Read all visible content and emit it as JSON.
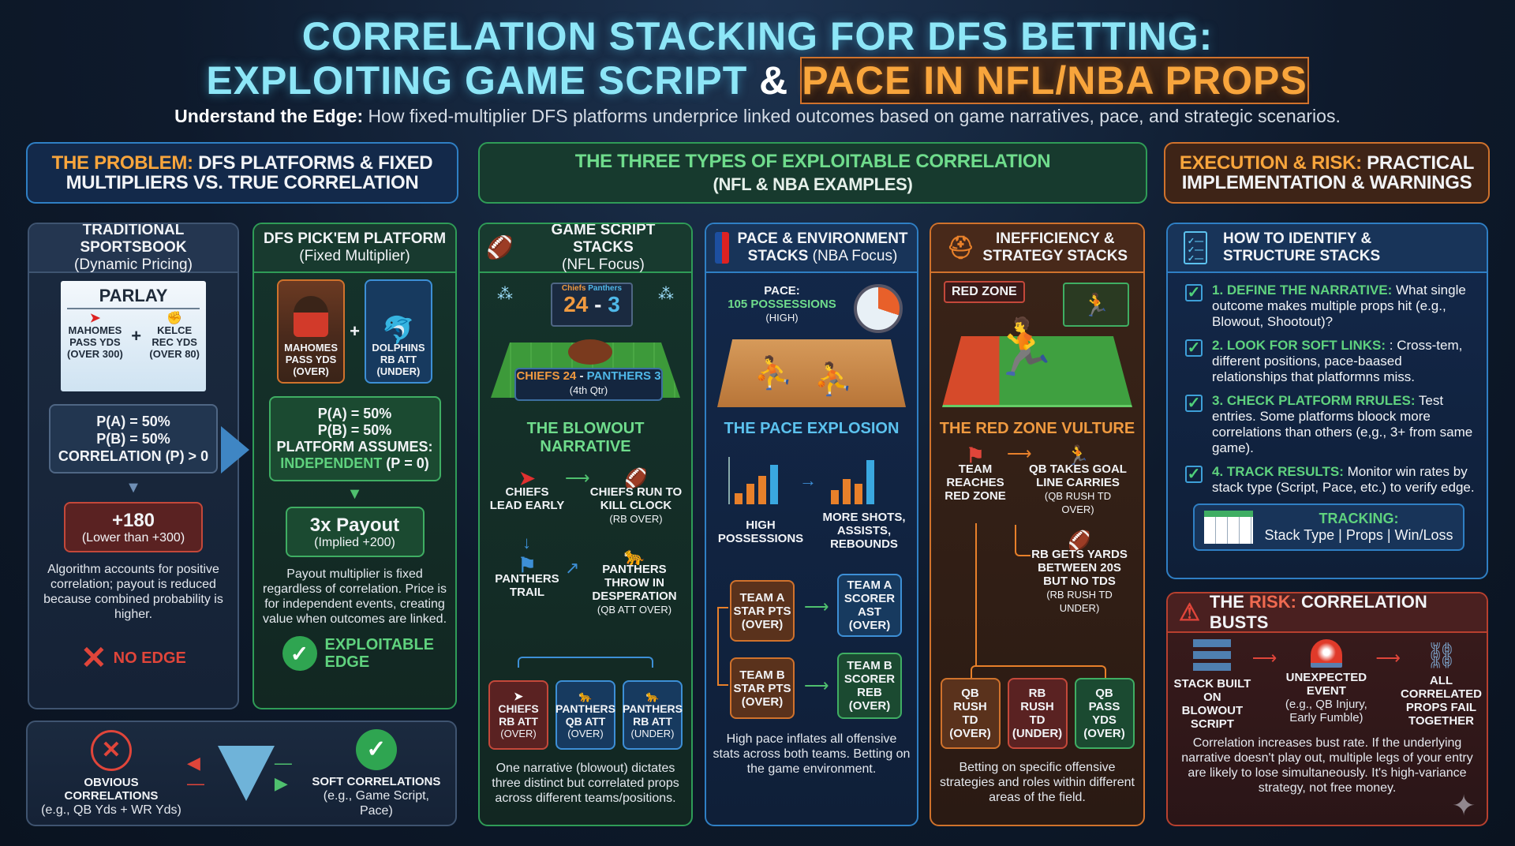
{
  "title": {
    "line1": "Correlation Stacking for DFS Betting:",
    "line2_a": "Exploiting Game Script",
    "line2_amp": "&",
    "line2_b": "Pace in NFL/NBA Props"
  },
  "subtitle": {
    "lead": "Understand the Edge:",
    "text": " How fixed-multiplier DFS platforms underprice linked outcomes based on game narratives, pace, and strategic scenarios."
  },
  "sections": {
    "problem": {
      "accent": "The Problem:",
      "rest": " DFS Platforms & Fixed Multipliers vs. True Correlation"
    },
    "types": {
      "line1": "The Three Types of Exploitable Correlation",
      "line2": "(NFL & NBA Examples)"
    },
    "execution": {
      "accent": "Execution & Risk:",
      "rest": " Practical Implementation & Warnings"
    }
  },
  "sportsbook": {
    "title": "Traditional Sportsbook",
    "subtitle": "(Dynamic Pricing)",
    "ticket_title": "Parlay",
    "leg_a": [
      "Mahomes",
      "Pass Yds",
      "(Over 300)"
    ],
    "leg_b": [
      "Kelce",
      "Rec Yds",
      "(Over 80)"
    ],
    "plus": "+",
    "prob": [
      "P(A) = 50%",
      "P(B) = 50%",
      "Correlation (ρ) > 0"
    ],
    "odds": "+180",
    "odds_note": "(Lower than +300)",
    "desc": "Algorithm accounts for positive correlation; payout is reduced because combined probability is higher.",
    "verdict": "No Edge"
  },
  "dfs": {
    "title": "DFS Pick'em Platform",
    "subtitle": "(Fixed Multiplier)",
    "card_a": [
      "Mahomes",
      "Pass Yds",
      "(Over)"
    ],
    "card_b": [
      "Dolphins",
      "RB Att",
      "(Under)"
    ],
    "plus": "+",
    "prob": [
      "P(A) = 50%",
      "P(B) = 50%",
      "Platform Assumes:"
    ],
    "independent": "Independent",
    "independent_rho": " (ρ = 0)",
    "payout": "3x Payout",
    "payout_note": "(Implied +200)",
    "desc": "Payout multiplier is fixed regardless of correlation. Price is for independent events, creating value when outcomes are linked.",
    "verdict": "Exploitable Edge"
  },
  "filter": {
    "obvious": "Obvious Correlations",
    "obvious_ex": "(e.g., QB Yds + WR Yds)",
    "soft": "Soft Correlations",
    "soft_ex": "(e.g., Game Script, Pace)"
  },
  "game_script": {
    "title": "Game Script Stacks",
    "subtitle": "(NFL Focus)",
    "score_team_a": "Chiefs",
    "score_team_b": "Panthers",
    "score_a": "24",
    "score_dash": "-",
    "score_b": "3",
    "banner_a": "Chiefs 24",
    "banner_dash": " - ",
    "banner_b": "Panthers 3",
    "banner_qtr": "(4th Qtr)",
    "narrative": "The Blowout Narrative",
    "n1": "Chiefs Lead Early",
    "n2": "Chiefs Run to Kill Clock",
    "n2_note": "(RB Over)",
    "n3": "Panthers Trail",
    "n4": "Panthers Throw in Desperation",
    "n4_note": "(QB Att Over)",
    "props": [
      [
        "Chiefs",
        "RB Att",
        "(Over)"
      ],
      [
        "Panthers",
        "QB Att",
        "(Over)"
      ],
      [
        "Panthers",
        "RB Att",
        "(Under)"
      ]
    ],
    "desc": "One narrative (blowout) dictates three distinct but correlated props across different teams/positions."
  },
  "pace": {
    "title": "Pace & Environment",
    "title2": "Stacks",
    "subtitle": " (NBA Focus)",
    "pace_label": "Pace:",
    "pace_value": "105 Possessions",
    "pace_level": "(High)",
    "narrative": "The Pace Explosion",
    "c1": "High Possessions",
    "c2": "More Shots, Assists, Rebounds",
    "props": [
      [
        "Team A",
        "Star Pts",
        "(Over)"
      ],
      [
        "Team A",
        "Scorer",
        "AST",
        "(Over)"
      ],
      [
        "Team B",
        "Star Pts",
        "(Over)"
      ],
      [
        "Team B",
        "Scorer",
        "REB",
        "(Over)"
      ]
    ],
    "desc": "High pace inflates all offensive stats across both teams. Betting on the game environment."
  },
  "ineff": {
    "title": "Inefficiency &",
    "title2": "Strategy Stacks",
    "zone_tag": "Red Zone",
    "narrative": "The Red Zone Vulture",
    "n1": "Team Reaches Red Zone",
    "n2": "QB Takes Goal Line Carries",
    "n2_note": "(QB Rush TD Over)",
    "n3": "RB Gets Yards Between 20s But No TDs",
    "n3_note": "(RB Rush TD Under)",
    "props": [
      [
        "QB",
        "Rush",
        "TD",
        "(Over)"
      ],
      [
        "RB",
        "Rush",
        "TD",
        "(Under)"
      ],
      [
        "QB",
        "Pass",
        "Yds",
        "(Over)"
      ]
    ],
    "desc": "Betting on specific offensive strategies and roles within different areas of the field."
  },
  "howto": {
    "title": "How to Identify &",
    "title2": "Structure Stacks",
    "steps": [
      {
        "head": "1. Define the Narrative:",
        "body": " What single outcome makes multiple props hit (e.g., Blowout, Shootout)?"
      },
      {
        "head": "2. Look for Soft Links:",
        "body": " : Cross-tem, different positions, pace-baased relationships that platformns miss."
      },
      {
        "head": "3. Check Platform Rrules:",
        "body": " Test entries. Some platforms bloock more correlations than others (e,g., 3+ from same game)."
      },
      {
        "head": "4. Track Results:",
        "body": " Monitor win rates by stack type (Script, Pace, etc.)  to verify edge."
      }
    ],
    "tracking_label": "Tracking:",
    "tracking_cols": "Stack Type | Props | Win/Loss"
  },
  "risk": {
    "pre": "The ",
    "accent": "Risk:",
    "rest": " Correlation Busts",
    "s1": "Stack Built on Blowout Script",
    "s2": "Unexpected Event",
    "s2_note": "(e.g., QB Injury, Early Fumble)",
    "s3": "All Correlated Props Fail Together",
    "desc": "Correlation increases bust rate. If the underlying narrative doesn't play out, multiple legs of your entry are likely to lose simultaneously. It's high-variance strategy, not free money."
  },
  "colors": {
    "green": "#3fae63",
    "blue": "#3d8fd6",
    "orange": "#d0722c",
    "red": "#c4483a",
    "cyan": "#8de6f7",
    "accent_orange": "#f8a53c"
  }
}
